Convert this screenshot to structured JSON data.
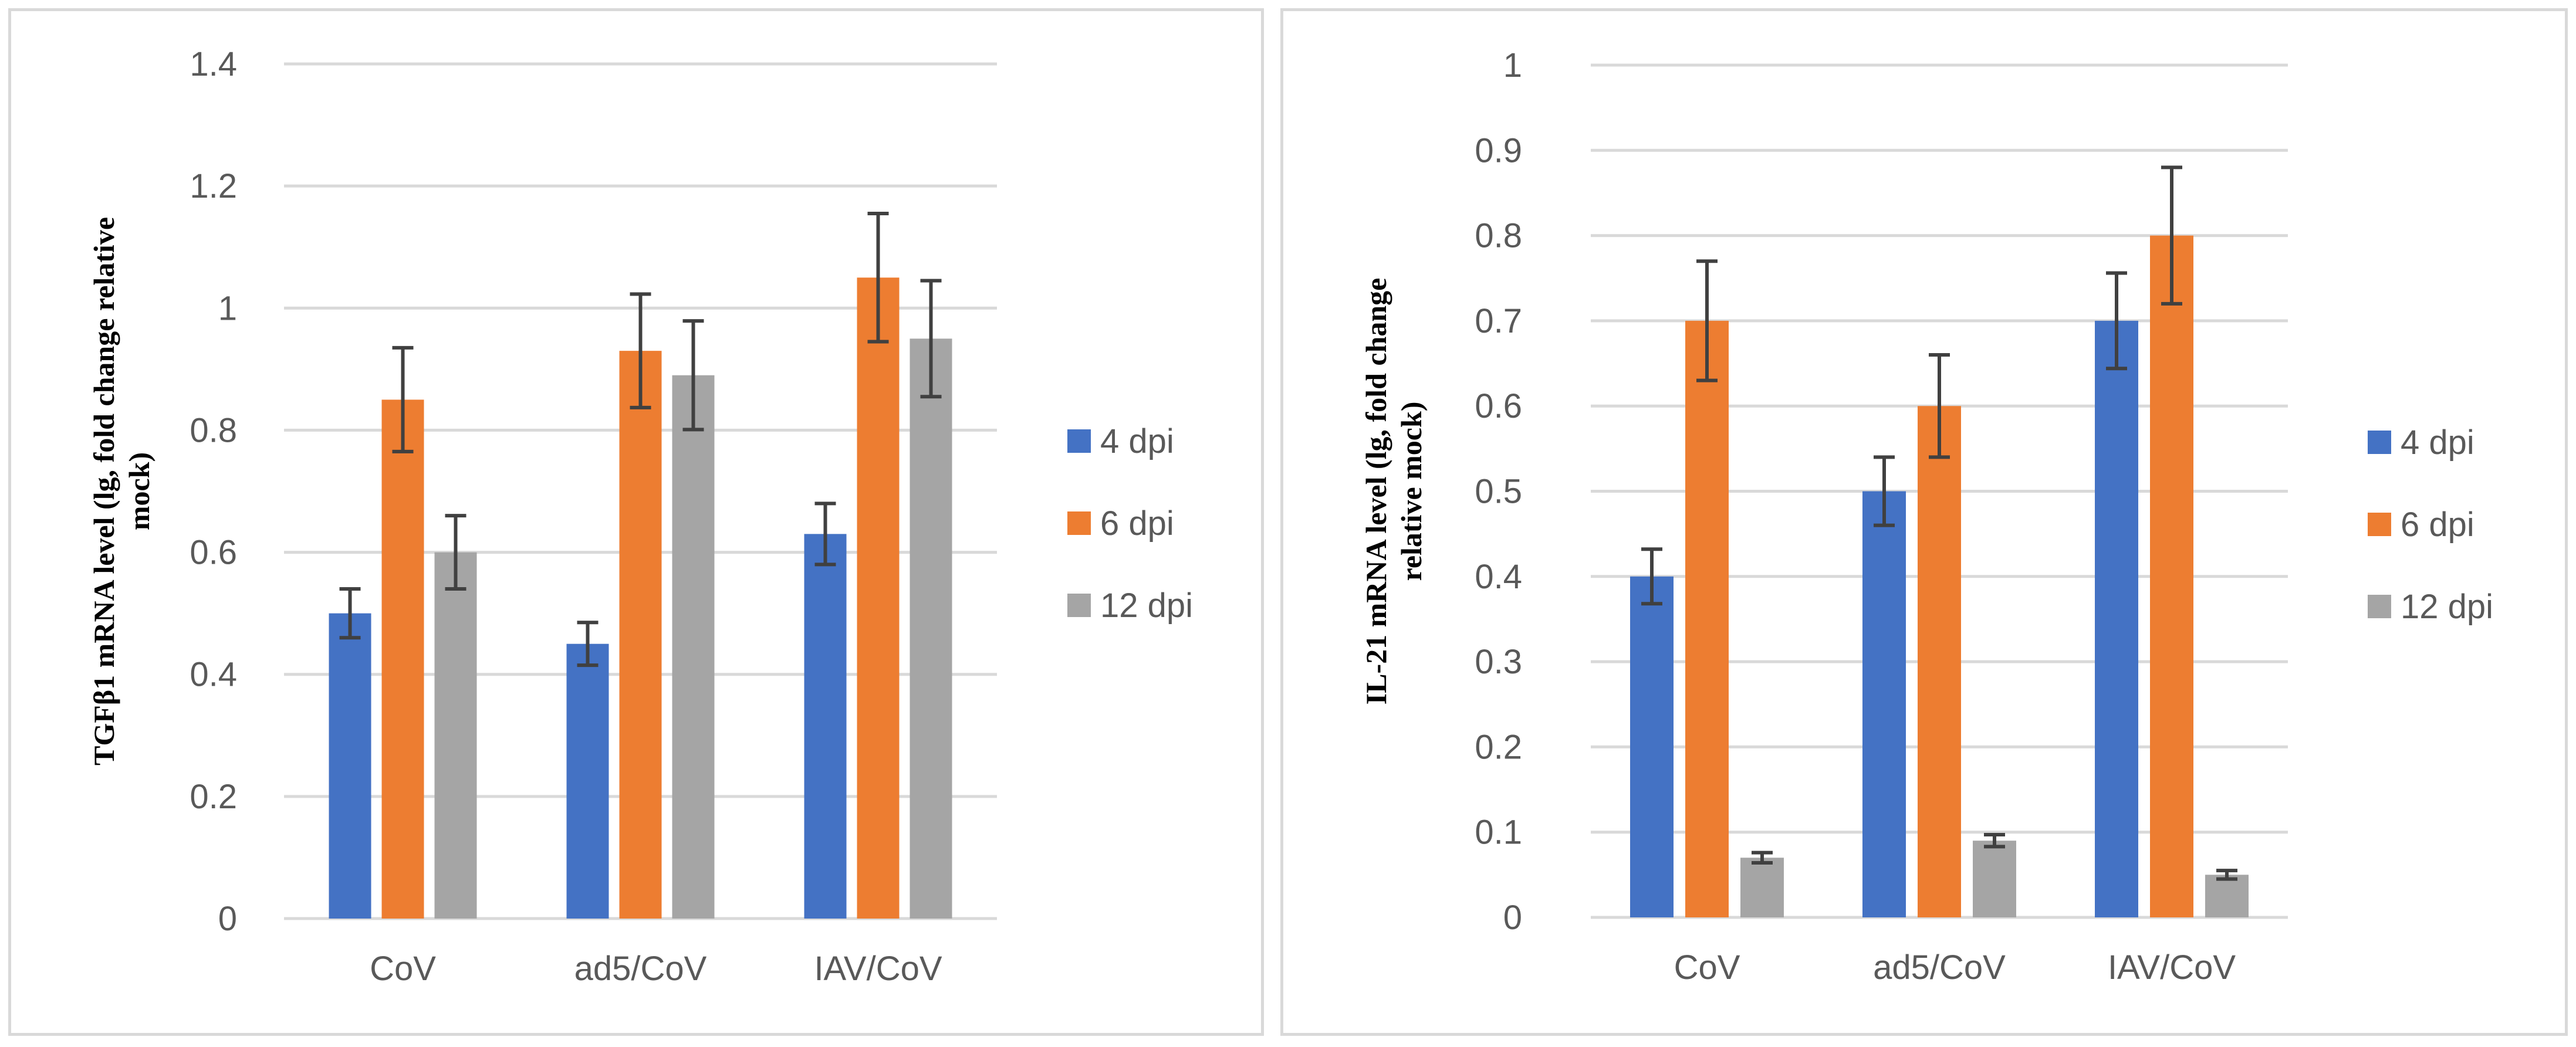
{
  "chart_data": [
    {
      "type": "bar",
      "ylabel_lines": [
        "TGFβ1 mRNA level (lg, fold change relative",
        "mock)"
      ],
      "categories": [
        "CoV",
        "ad5/CoV",
        "IAV/CoV"
      ],
      "ylim": [
        0,
        1.4
      ],
      "yticks": [
        "0",
        "0.2",
        "0.4",
        "0.6",
        "0.8",
        "1",
        "1.2",
        "1.4"
      ],
      "grid": true,
      "legend_position": "right",
      "series": [
        {
          "name": "4 dpi",
          "color": "#4472C4",
          "values": [
            0.5,
            0.45,
            0.63
          ],
          "errors": [
            0.04,
            0.035,
            0.05
          ]
        },
        {
          "name": "6 dpi",
          "color": "#ED7D31",
          "values": [
            0.85,
            0.93,
            1.05
          ],
          "errors": [
            0.085,
            0.093,
            0.105
          ]
        },
        {
          "name": "12 dpi",
          "color": "#A5A5A5",
          "values": [
            0.6,
            0.89,
            0.95
          ],
          "errors": [
            0.06,
            0.089,
            0.095
          ]
        }
      ]
    },
    {
      "type": "bar",
      "ylabel_lines": [
        "IL-21 mRNA level (lg, fold change",
        "relative mock)"
      ],
      "categories": [
        "CoV",
        "ad5/CoV",
        "IAV/CoV"
      ],
      "ylim": [
        0,
        1.0
      ],
      "yticks": [
        "0",
        "0.1",
        "0.2",
        "0.3",
        "0.4",
        "0.5",
        "0.6",
        "0.7",
        "0.8",
        "0.9",
        "1"
      ],
      "grid": true,
      "legend_position": "right",
      "series": [
        {
          "name": "4 dpi",
          "color": "#4472C4",
          "values": [
            0.4,
            0.5,
            0.7
          ],
          "errors": [
            0.032,
            0.04,
            0.056
          ]
        },
        {
          "name": "6 dpi",
          "color": "#ED7D31",
          "values": [
            0.7,
            0.6,
            0.8
          ],
          "errors": [
            0.07,
            0.06,
            0.08
          ]
        },
        {
          "name": "12 dpi",
          "color": "#A5A5A5",
          "values": [
            0.07,
            0.09,
            0.05
          ],
          "errors": [
            0.006,
            0.007,
            0.005
          ]
        }
      ]
    }
  ]
}
